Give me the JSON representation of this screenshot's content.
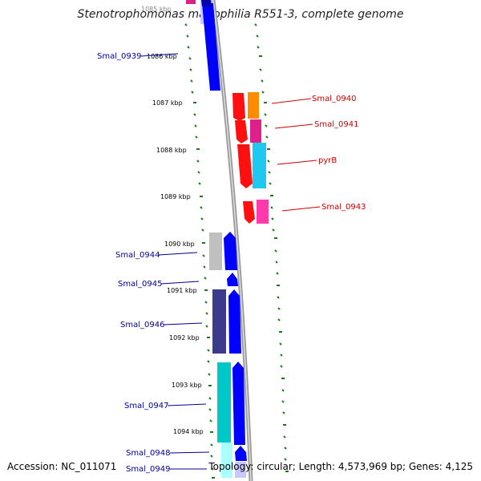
{
  "title": "Stenotrophomonas maltophilia R551-3, complete genome",
  "footer": {
    "accession": "Accession: NC_011071",
    "summary": "Topology: circular; Length: 4,573,969 bp; Genes: 4,125"
  },
  "ticks": [
    "1085 kbp",
    "1086 kbp",
    "1087 kbp",
    "1088 kbp",
    "1089 kbp",
    "1090 kbp",
    "1091 kbp",
    "1092 kbp",
    "1093 kbp",
    "1094 kbp"
  ],
  "gene_labels": [
    {
      "name": "Smal_0939",
      "strand": "minus"
    },
    {
      "name": "Smal_0940",
      "strand": "plus"
    },
    {
      "name": "Smal_0941",
      "strand": "plus"
    },
    {
      "name": "pyrB",
      "strand": "plus"
    },
    {
      "name": "Smal_0943",
      "strand": "plus"
    },
    {
      "name": "Smal_0944",
      "strand": "minus"
    },
    {
      "name": "Smal_0945",
      "strand": "minus"
    },
    {
      "name": "Smal_0946",
      "strand": "minus"
    },
    {
      "name": "Smal_0947",
      "strand": "minus"
    },
    {
      "name": "Smal_0948",
      "strand": "minus"
    },
    {
      "name": "Smal_0949",
      "strand": "minus"
    }
  ],
  "colors": {
    "plus_label": "#cc0000",
    "minus_label": "#000099",
    "backbone": "#888888",
    "tick": "#006600",
    "plus_cds": "#ff0000",
    "minus_cds": "#0000ff"
  }
}
